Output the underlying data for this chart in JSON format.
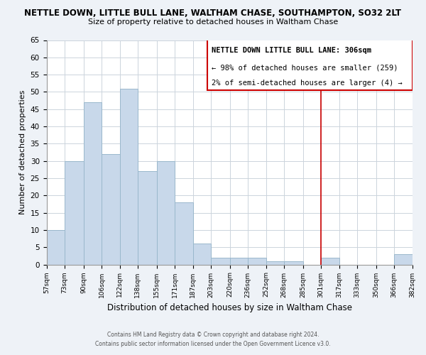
{
  "title": "NETTLE DOWN, LITTLE BULL LANE, WALTHAM CHASE, SOUTHAMPTON, SO32 2LT",
  "subtitle": "Size of property relative to detached houses in Waltham Chase",
  "xlabel": "Distribution of detached houses by size in Waltham Chase",
  "ylabel": "Number of detached properties",
  "bar_color": "#c8d8ea",
  "bar_edge_color": "#9ab8cc",
  "bin_edges": [
    57,
    73,
    90,
    106,
    122,
    138,
    155,
    171,
    187,
    203,
    220,
    236,
    252,
    268,
    285,
    301,
    317,
    333,
    350,
    366,
    382
  ],
  "counts": [
    10,
    30,
    47,
    32,
    51,
    27,
    30,
    18,
    6,
    2,
    2,
    2,
    1,
    1,
    0,
    2,
    0,
    0,
    0,
    3
  ],
  "tick_labels": [
    "57sqm",
    "73sqm",
    "90sqm",
    "106sqm",
    "122sqm",
    "138sqm",
    "155sqm",
    "171sqm",
    "187sqm",
    "203sqm",
    "220sqm",
    "236sqm",
    "252sqm",
    "268sqm",
    "285sqm",
    "301sqm",
    "317sqm",
    "333sqm",
    "350sqm",
    "366sqm",
    "382sqm"
  ],
  "ylim": [
    0,
    65
  ],
  "yticks": [
    0,
    5,
    10,
    15,
    20,
    25,
    30,
    35,
    40,
    45,
    50,
    55,
    60,
    65
  ],
  "property_line_x": 301,
  "property_line_color": "#cc0000",
  "annotation_title": "NETTLE DOWN LITTLE BULL LANE: 306sqm",
  "annotation_line1": "← 98% of detached houses are smaller (259)",
  "annotation_line2": "2% of semi-detached houses are larger (4) →",
  "footer_line1": "Contains HM Land Registry data © Crown copyright and database right 2024.",
  "footer_line2": "Contains public sector information licensed under the Open Government Licence v3.0.",
  "background_color": "#eef2f7",
  "plot_background_color": "#ffffff",
  "grid_color": "#ccd4dc"
}
